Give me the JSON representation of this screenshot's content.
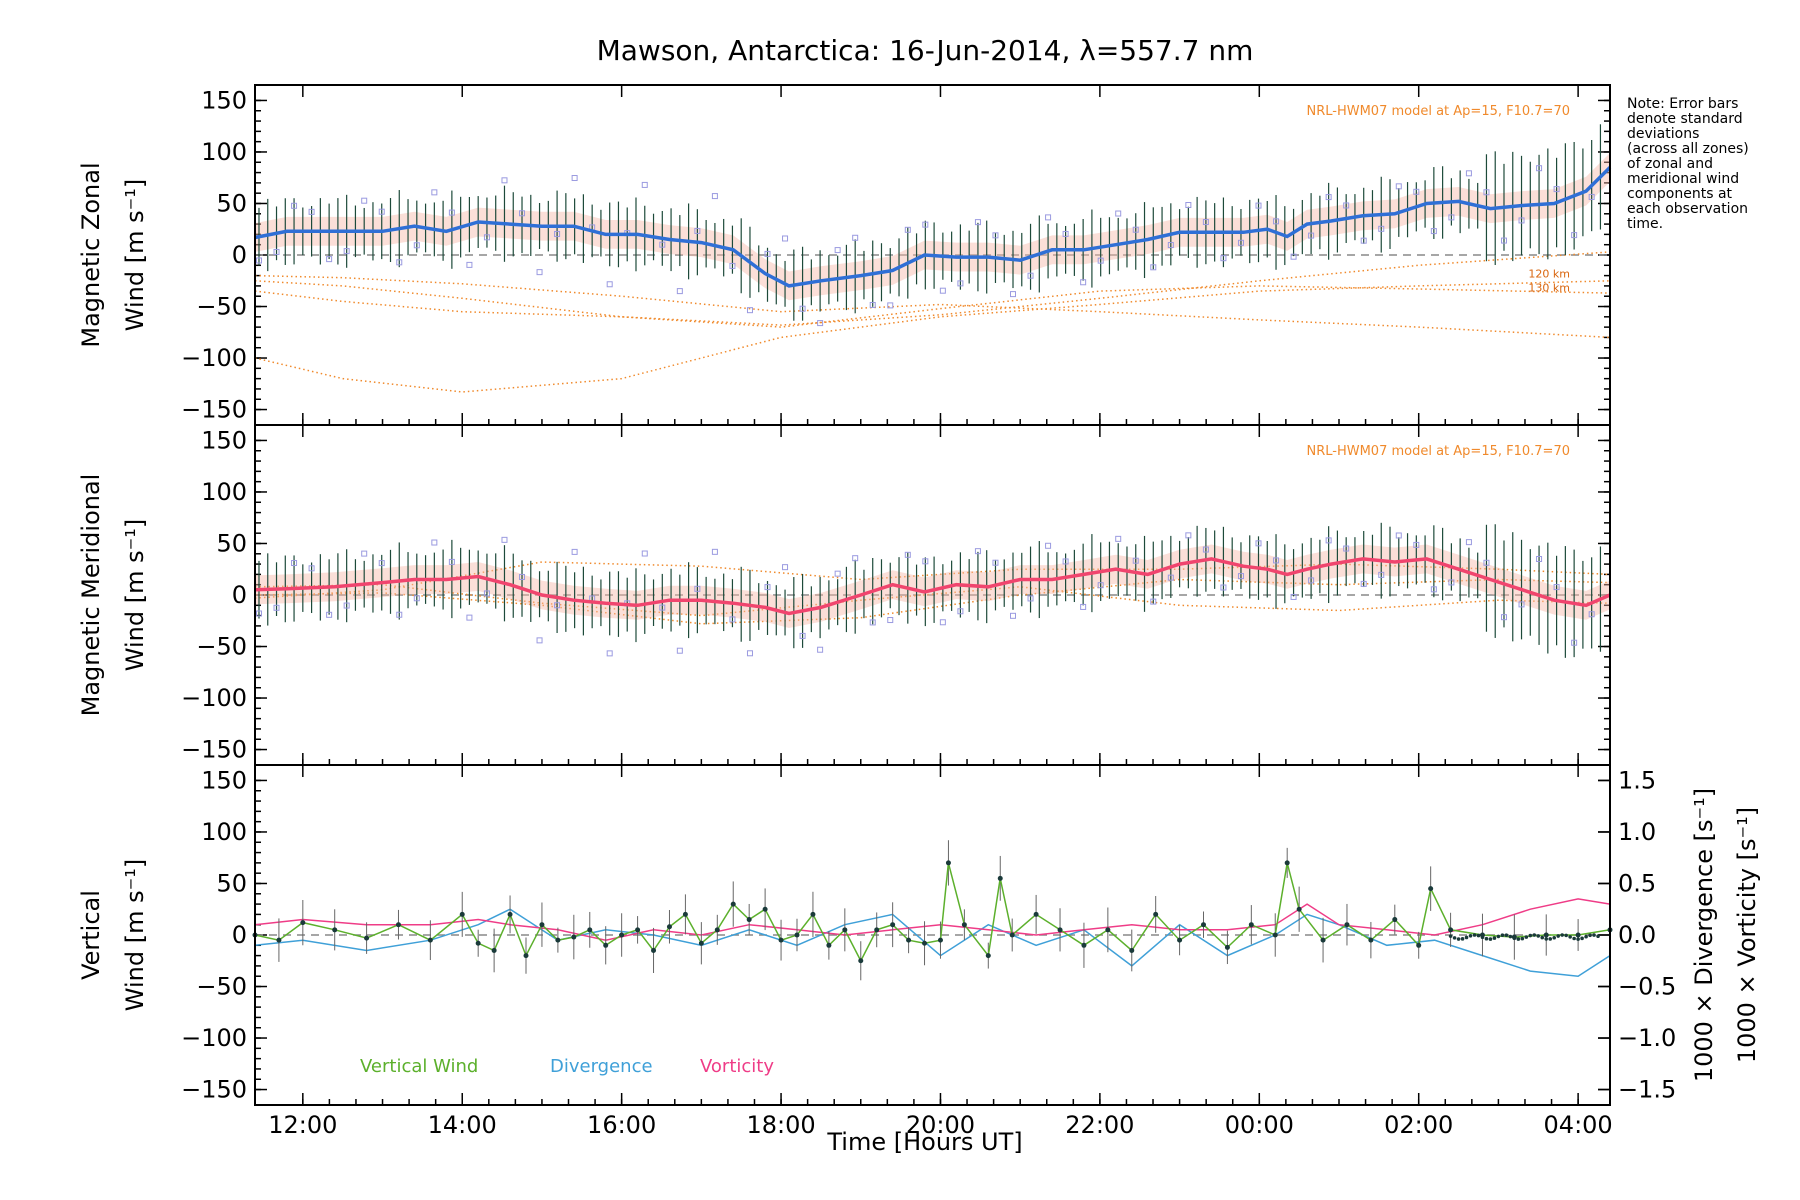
{
  "title": "Mawson, Antarctica: 16-Jun-2014, λ=557.7 nm",
  "note_lines": [
    "Note: Error bars",
    "denote standard",
    "deviations",
    "(across all zones)",
    "of zonal and",
    "meridional wind",
    "components at",
    "each observation",
    "time."
  ],
  "x_axis": {
    "label": "Time [Hours UT]",
    "tick_labels": [
      "12:00",
      "14:00",
      "16:00",
      "18:00",
      "20:00",
      "22:00",
      "00:00",
      "02:00",
      "04:00"
    ],
    "tick_hours": [
      12,
      14,
      16,
      18,
      20,
      22,
      24,
      26,
      28
    ],
    "range_hours": [
      11.4,
      28.4
    ]
  },
  "y_tick_labels": [
    "150",
    "100",
    "50",
    "0",
    "−50",
    "−100",
    "−150"
  ],
  "y_tick_values": [
    150,
    100,
    50,
    0,
    -50,
    -100,
    -150
  ],
  "panels": {
    "zonal": {
      "ylabel_line1": "Magnetic Zonal",
      "ylabel_line2": "Wind [m s⁻¹]",
      "model_label": "NRL-HWM07 model at Ap=15, F10.7=70",
      "alt_labels": [
        "120 km",
        "130 km"
      ]
    },
    "meridional": {
      "ylabel_line1": "Magnetic Meridional",
      "ylabel_line2": "Wind [m s⁻¹]",
      "model_label": "NRL-HWM07 model at Ap=15, F10.7=70"
    },
    "vertical": {
      "ylabel_line1": "Vertical",
      "ylabel_line2": "Wind [m s⁻¹]",
      "right_label_1": "1000 × Divergence [s⁻¹]",
      "right_label_2": "1000 × Vorticity [s⁻¹]",
      "right_tick_labels": [
        "1.5",
        "1.0",
        "0.5",
        "0.0",
        "−0.5",
        "−1.0",
        "−1.5"
      ],
      "right_tick_values": [
        1.5,
        1.0,
        0.5,
        0.0,
        -0.5,
        -1.0,
        -1.5
      ],
      "legend": [
        "Vertical Wind",
        "Divergence",
        "Vorticity"
      ]
    }
  },
  "colors": {
    "zonal": "#2f6fd6",
    "meridional": "#f0456e",
    "vertical": "#5cb02c",
    "divergence": "#3fa0d8",
    "vorticity": "#ef3c87",
    "model": "#f08a2c",
    "scatter": "#9a9ae0",
    "errorbar": "#1d4a3a"
  },
  "chart_data": [
    {
      "type": "line",
      "panel": "zonal",
      "ylim": [
        -165,
        165
      ],
      "series": [
        {
          "x": [
            11.4,
            11.8,
            12.4,
            13.0,
            13.4,
            13.8,
            14.2,
            14.6,
            15.0,
            15.4,
            15.8,
            16.2,
            16.6,
            17.0,
            17.4,
            17.8,
            18.1,
            18.5,
            19.0,
            19.4,
            19.8,
            20.2,
            20.6,
            21.0,
            21.4,
            21.8,
            22.2,
            22.6,
            23.0,
            23.4,
            23.8,
            24.1,
            24.35,
            24.6,
            24.9,
            25.3,
            25.7,
            26.1,
            26.5,
            26.9,
            27.3,
            27.7,
            28.1,
            28.4
          ],
          "y": [
            17,
            23,
            23,
            23,
            28,
            23,
            32,
            30,
            28,
            28,
            20,
            20,
            15,
            12,
            5,
            -18,
            -30,
            -25,
            -20,
            -15,
            0,
            -2,
            -2,
            -5,
            5,
            5,
            10,
            15,
            22,
            22,
            22,
            25,
            18,
            30,
            33,
            38,
            40,
            50,
            52,
            45,
            48,
            50,
            62,
            85
          ]
        }
      ],
      "model_curves": [
        {
          "x": [
            11.4,
            12.5,
            14.0,
            16.0,
            18.0,
            20.0,
            22.0,
            24.0,
            26.0,
            28.4
          ],
          "y": [
            -25,
            -30,
            -42,
            -60,
            -70,
            -52,
            -35,
            -30,
            -33,
            -37
          ]
        },
        {
          "x": [
            11.4,
            12.5,
            14.0,
            16.0,
            18.0,
            20.0,
            22.0,
            24.0,
            26.0,
            28.4
          ],
          "y": [
            -35,
            -45,
            -55,
            -60,
            -68,
            -58,
            -42,
            -25,
            -10,
            3
          ]
        },
        {
          "x": [
            11.4,
            12.5,
            14.0,
            16.0,
            18.0,
            20.0,
            22.0,
            24.0,
            26.0,
            28.4
          ],
          "y": [
            -20,
            -22,
            -28,
            -40,
            -55,
            -48,
            -55,
            -63,
            -70,
            -80
          ]
        },
        {
          "x": [
            11.4,
            12.5,
            14.0,
            16.0,
            18.0,
            20.0,
            22.0,
            24.0,
            26.0,
            28.4
          ],
          "y": [
            -100,
            -120,
            -133,
            -120,
            -80,
            -60,
            -48,
            -35,
            -30,
            -25
          ]
        }
      ]
    },
    {
      "type": "line",
      "panel": "meridional",
      "ylim": [
        -165,
        165
      ],
      "series": [
        {
          "x": [
            11.4,
            11.8,
            12.4,
            13.0,
            13.4,
            13.8,
            14.2,
            14.6,
            15.0,
            15.4,
            15.8,
            16.2,
            16.6,
            17.0,
            17.4,
            17.8,
            18.1,
            18.5,
            19.0,
            19.4,
            19.8,
            20.2,
            20.6,
            21.0,
            21.4,
            21.8,
            22.2,
            22.6,
            23.0,
            23.4,
            23.8,
            24.1,
            24.35,
            24.6,
            24.9,
            25.3,
            25.7,
            26.1,
            26.5,
            26.9,
            27.3,
            27.7,
            28.1,
            28.4
          ],
          "y": [
            5,
            6,
            8,
            12,
            15,
            15,
            18,
            10,
            0,
            -5,
            -8,
            -10,
            -5,
            -5,
            -8,
            -12,
            -18,
            -12,
            0,
            10,
            3,
            10,
            8,
            15,
            15,
            20,
            25,
            20,
            30,
            35,
            28,
            25,
            20,
            25,
            30,
            35,
            32,
            35,
            25,
            15,
            5,
            -5,
            -10,
            0
          ]
        }
      ],
      "model_curves": [
        {
          "x": [
            11.4,
            13.0,
            15.0,
            17.0,
            19.0,
            21.0,
            23.0,
            25.0,
            27.0,
            28.4
          ],
          "y": [
            -3,
            5,
            32,
            28,
            15,
            25,
            25,
            30,
            25,
            20
          ]
        },
        {
          "x": [
            11.4,
            13.0,
            15.0,
            17.0,
            19.0,
            21.0,
            23.0,
            25.0,
            27.0,
            28.4
          ],
          "y": [
            0,
            2,
            -10,
            -28,
            -22,
            0,
            15,
            10,
            15,
            12
          ]
        },
        {
          "x": [
            11.4,
            13.0,
            15.0,
            17.0,
            19.0,
            21.0,
            23.0,
            25.0,
            27.0,
            28.4
          ],
          "y": [
            8,
            10,
            -8,
            -20,
            -5,
            8,
            -10,
            -15,
            -5,
            -8
          ]
        }
      ]
    },
    {
      "type": "line",
      "panel": "vertical",
      "ylim": [
        -165,
        165
      ],
      "y2lim": [
        -1.65,
        1.65
      ],
      "series": [
        {
          "name": "Vertical Wind",
          "x": [
            11.4,
            11.7,
            12.0,
            12.4,
            12.8,
            13.2,
            13.6,
            14.0,
            14.2,
            14.4,
            14.6,
            14.8,
            15.0,
            15.2,
            15.4,
            15.6,
            15.8,
            16.0,
            16.2,
            16.4,
            16.6,
            16.8,
            17.0,
            17.2,
            17.4,
            17.6,
            17.8,
            18.0,
            18.2,
            18.4,
            18.6,
            18.8,
            19.0,
            19.2,
            19.4,
            19.6,
            19.8,
            20.0,
            20.1,
            20.3,
            20.6,
            20.75,
            20.9,
            21.2,
            21.5,
            21.8,
            22.1,
            22.4,
            22.7,
            23.0,
            23.3,
            23.6,
            23.9,
            24.2,
            24.35,
            24.5,
            24.8,
            25.1,
            25.4,
            25.7,
            26.0,
            26.15,
            26.4,
            26.8,
            27.2,
            27.6,
            28.0,
            28.4
          ],
          "y": [
            0,
            -5,
            12,
            5,
            -3,
            10,
            -5,
            20,
            -8,
            -15,
            20,
            -20,
            10,
            -5,
            -2,
            5,
            -10,
            0,
            5,
            -15,
            8,
            20,
            -8,
            5,
            30,
            15,
            25,
            -5,
            0,
            20,
            -10,
            5,
            -25,
            5,
            10,
            -5,
            -8,
            -5,
            70,
            10,
            -20,
            55,
            0,
            20,
            5,
            -10,
            5,
            -15,
            20,
            -5,
            10,
            -12,
            10,
            0,
            70,
            25,
            -5,
            10,
            -5,
            15,
            -10,
            45,
            5,
            0,
            -2,
            0,
            0,
            5
          ]
        },
        {
          "name": "Divergence",
          "axis": "right",
          "x": [
            11.4,
            12.0,
            12.8,
            13.6,
            14.2,
            14.6,
            15.2,
            15.8,
            16.4,
            17.0,
            17.6,
            18.2,
            18.8,
            19.4,
            20.0,
            20.6,
            21.2,
            21.8,
            22.4,
            23.0,
            23.6,
            24.2,
            24.6,
            25.0,
            25.6,
            26.2,
            26.8,
            27.4,
            28.0,
            28.4
          ],
          "y": [
            -0.1,
            -0.05,
            -0.15,
            -0.05,
            0.1,
            0.25,
            -0.05,
            0.05,
            0.0,
            -0.1,
            0.05,
            -0.1,
            0.1,
            0.2,
            -0.2,
            0.1,
            -0.1,
            0.05,
            -0.3,
            0.1,
            -0.2,
            0.0,
            0.2,
            0.1,
            -0.1,
            -0.05,
            -0.2,
            -0.35,
            -0.4,
            -0.2
          ]
        },
        {
          "name": "Vorticity",
          "axis": "right",
          "x": [
            11.4,
            12.0,
            12.8,
            13.6,
            14.2,
            14.6,
            15.2,
            15.8,
            16.4,
            17.0,
            17.6,
            18.2,
            18.8,
            19.4,
            20.0,
            20.6,
            21.2,
            21.8,
            22.4,
            23.0,
            23.6,
            24.2,
            24.6,
            25.0,
            25.6,
            26.2,
            26.8,
            27.4,
            28.0,
            28.4
          ],
          "y": [
            0.1,
            0.15,
            0.1,
            0.1,
            0.15,
            0.1,
            0.05,
            -0.05,
            0.05,
            0.0,
            0.1,
            0.05,
            0.0,
            0.05,
            0.1,
            0.05,
            0.0,
            0.05,
            0.1,
            0.05,
            0.05,
            0.1,
            0.3,
            0.1,
            0.05,
            0.0,
            0.1,
            0.25,
            0.35,
            0.3
          ]
        }
      ]
    }
  ]
}
